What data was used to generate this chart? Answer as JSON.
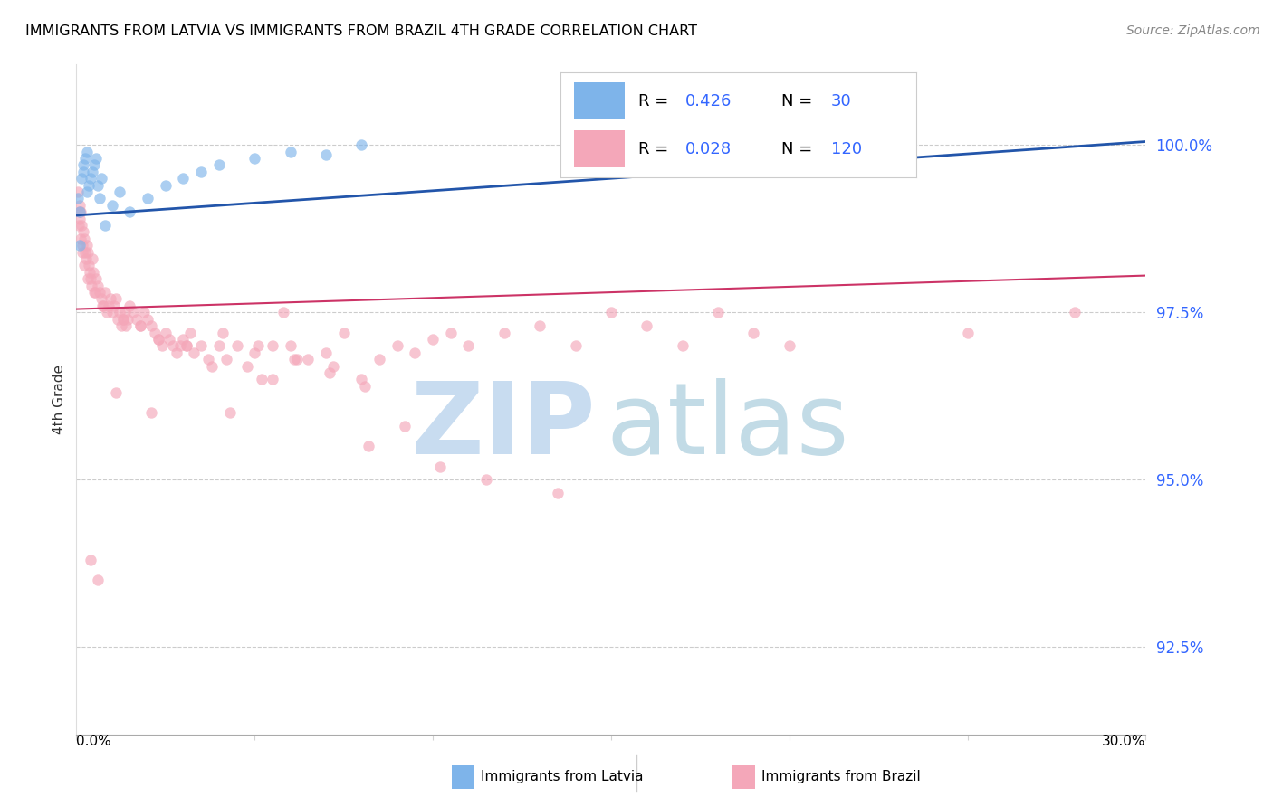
{
  "title": "IMMIGRANTS FROM LATVIA VS IMMIGRANTS FROM BRAZIL 4TH GRADE CORRELATION CHART",
  "source": "Source: ZipAtlas.com",
  "ylabel": "4th Grade",
  "xlim": [
    0.0,
    30.0
  ],
  "ylim": [
    91.2,
    101.2
  ],
  "plot_ylim": [
    92.5,
    100.8
  ],
  "yticks": [
    92.5,
    95.0,
    97.5,
    100.0
  ],
  "ytick_labels": [
    "92.5%",
    "95.0%",
    "97.5%",
    "100.0%"
  ],
  "color_latvia": "#7EB4EA",
  "color_brazil": "#F4A7B9",
  "color_line_latvia": "#2255AA",
  "color_line_brazil": "#CC3366",
  "watermark_zip_color": "#C8DCF0",
  "watermark_atlas_color": "#A8CCDC",
  "scatter_alpha": 0.65,
  "marker_size": 80,
  "legend_text_color": "#3366FF",
  "latvia_x": [
    0.05,
    0.08,
    0.1,
    0.15,
    0.2,
    0.2,
    0.25,
    0.3,
    0.3,
    0.35,
    0.4,
    0.45,
    0.5,
    0.55,
    0.6,
    0.65,
    0.7,
    0.8,
    1.0,
    1.2,
    1.5,
    2.0,
    2.5,
    3.0,
    3.5,
    4.0,
    5.0,
    6.0,
    7.0,
    8.0
  ],
  "latvia_y": [
    99.2,
    99.0,
    98.5,
    99.5,
    99.6,
    99.7,
    99.8,
    99.9,
    99.3,
    99.4,
    99.5,
    99.6,
    99.7,
    99.8,
    99.4,
    99.2,
    99.5,
    98.8,
    99.1,
    99.3,
    99.0,
    99.2,
    99.4,
    99.5,
    99.6,
    99.7,
    99.8,
    99.9,
    99.85,
    100.0
  ],
  "brazil_x": [
    0.05,
    0.08,
    0.1,
    0.12,
    0.15,
    0.18,
    0.2,
    0.22,
    0.25,
    0.28,
    0.3,
    0.32,
    0.35,
    0.38,
    0.4,
    0.42,
    0.45,
    0.48,
    0.5,
    0.55,
    0.6,
    0.65,
    0.7,
    0.75,
    0.8,
    0.85,
    0.9,
    0.95,
    1.0,
    1.05,
    1.1,
    1.15,
    1.2,
    1.25,
    1.3,
    1.35,
    1.4,
    1.45,
    1.5,
    1.6,
    1.7,
    1.8,
    1.9,
    2.0,
    2.1,
    2.2,
    2.3,
    2.4,
    2.5,
    2.6,
    2.7,
    2.8,
    2.9,
    3.0,
    3.1,
    3.2,
    3.3,
    3.5,
    3.7,
    4.0,
    4.2,
    4.5,
    4.8,
    5.0,
    5.5,
    5.8,
    6.0,
    6.5,
    7.0,
    7.5,
    8.0,
    8.5,
    9.0,
    9.5,
    10.0,
    10.5,
    11.0,
    12.0,
    13.0,
    14.0,
    15.0,
    16.0,
    17.0,
    18.0,
    19.0,
    20.0,
    25.0,
    28.0,
    0.06,
    0.09,
    0.13,
    0.16,
    0.23,
    0.33,
    0.53,
    0.73,
    1.3,
    1.8,
    2.3,
    3.8,
    4.3,
    5.2,
    6.2,
    7.2,
    8.2,
    9.2,
    10.2,
    11.5,
    13.5,
    5.5,
    0.4,
    0.6,
    1.1,
    2.1,
    3.1,
    4.1,
    5.1,
    6.1,
    7.1,
    8.1
  ],
  "brazil_y": [
    99.3,
    99.1,
    98.9,
    99.0,
    98.8,
    98.5,
    98.7,
    98.6,
    98.4,
    98.3,
    98.5,
    98.4,
    98.2,
    98.1,
    98.0,
    97.9,
    98.3,
    98.1,
    97.8,
    98.0,
    97.9,
    97.8,
    97.7,
    97.6,
    97.8,
    97.5,
    97.6,
    97.7,
    97.5,
    97.6,
    97.7,
    97.4,
    97.5,
    97.3,
    97.4,
    97.5,
    97.3,
    97.4,
    97.6,
    97.5,
    97.4,
    97.3,
    97.5,
    97.4,
    97.3,
    97.2,
    97.1,
    97.0,
    97.2,
    97.1,
    97.0,
    96.9,
    97.0,
    97.1,
    97.0,
    97.2,
    96.9,
    97.0,
    96.8,
    97.0,
    96.8,
    97.0,
    96.7,
    96.9,
    97.0,
    97.5,
    97.0,
    96.8,
    96.9,
    97.2,
    96.5,
    96.8,
    97.0,
    96.9,
    97.1,
    97.2,
    97.0,
    97.2,
    97.3,
    97.0,
    97.5,
    97.3,
    97.0,
    97.5,
    97.2,
    97.0,
    97.2,
    97.5,
    98.8,
    99.0,
    98.6,
    98.4,
    98.2,
    98.0,
    97.8,
    97.6,
    97.4,
    97.3,
    97.1,
    96.7,
    96.0,
    96.5,
    96.8,
    96.7,
    95.5,
    95.8,
    95.2,
    95.0,
    94.8,
    96.5,
    93.8,
    93.5,
    96.3,
    96.0,
    97.0,
    97.2,
    97.0,
    96.8,
    96.6,
    96.4
  ]
}
